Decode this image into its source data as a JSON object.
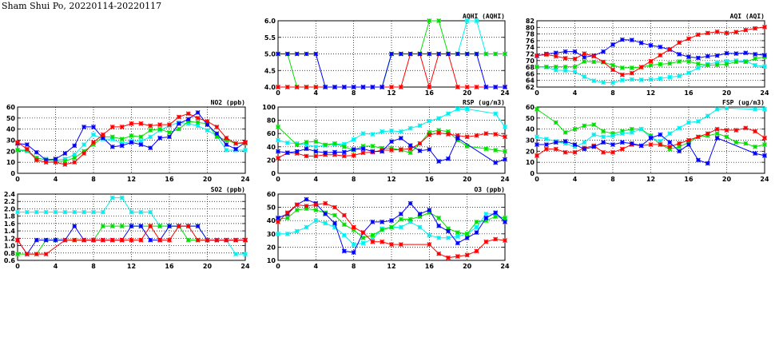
{
  "title": "Sham Shui Po, 20220114-20220117",
  "colors": {
    "blue": "#0000ff",
    "red": "#ff0000",
    "green": "#00e000",
    "cyan": "#00f0f0"
  },
  "chart_data": [
    {
      "id": "aqhi",
      "type": "line",
      "title": "AQHI (AQHI)",
      "xlim": [
        0,
        24
      ],
      "xticks": [
        0,
        4,
        8,
        12,
        16,
        20,
        24
      ],
      "ylim": [
        4,
        6
      ],
      "yticks": [
        "4.0",
        "4.5",
        "5.0",
        "5.5",
        "6.0"
      ],
      "grid": true,
      "x": [
        0,
        1,
        2,
        3,
        4,
        5,
        6,
        7,
        8,
        9,
        10,
        11,
        12,
        13,
        14,
        15,
        16,
        17,
        18,
        19,
        20,
        21,
        22,
        23,
        24
      ],
      "series": [
        {
          "name": "cyan",
          "values": [
            4,
            4,
            4,
            4,
            4,
            4,
            4,
            4,
            4,
            4,
            4,
            4,
            5,
            5,
            5,
            5,
            5,
            5,
            5,
            5,
            6,
            6,
            5,
            5,
            5
          ]
        },
        {
          "name": "green",
          "values": [
            5,
            5,
            4,
            4,
            4,
            4,
            4,
            4,
            4,
            4,
            4,
            4,
            5,
            5,
            5,
            5,
            6,
            6,
            5,
            5,
            5,
            5,
            5,
            5,
            5
          ]
        },
        {
          "name": "red",
          "values": [
            4,
            4,
            4,
            4,
            4,
            4,
            4,
            4,
            4,
            4,
            4,
            4,
            4,
            4,
            5,
            5,
            4,
            5,
            5,
            4,
            4,
            4,
            4,
            4,
            4
          ]
        },
        {
          "name": "blue",
          "values": [
            5,
            5,
            5,
            5,
            5,
            4,
            4,
            4,
            4,
            4,
            4,
            4,
            5,
            5,
            5,
            5,
            5,
            5,
            5,
            5,
            5,
            5,
            4,
            4,
            4
          ]
        }
      ]
    },
    {
      "id": "aqi",
      "type": "line",
      "title": "AQI (AQI)",
      "xlim": [
        0,
        24
      ],
      "xticks": [
        0,
        4,
        8,
        12,
        16,
        20,
        24
      ],
      "ylim": [
        62,
        82
      ],
      "yticks": [
        "62",
        "64",
        "66",
        "68",
        "70",
        "72",
        "74",
        "76",
        "78",
        "80",
        "82"
      ],
      "grid": true,
      "x": [
        0,
        1,
        2,
        3,
        4,
        5,
        6,
        7,
        8,
        9,
        10,
        11,
        12,
        13,
        14,
        15,
        16,
        17,
        18,
        19,
        20,
        21,
        22,
        23,
        24
      ],
      "series": [
        {
          "name": "cyan",
          "values": [
            68.1,
            68,
            67.1,
            67,
            66.6,
            65.1,
            63.9,
            63.4,
            63.3,
            64.1,
            64.3,
            64.2,
            64.3,
            64.6,
            65,
            65.3,
            66.3,
            67.8,
            68.9,
            69.4,
            69.8,
            70,
            69.8,
            68.6,
            68.2
          ]
        },
        {
          "name": "green",
          "values": [
            68.1,
            68.1,
            68.1,
            68.1,
            68.1,
            69.7,
            69.6,
            69.5,
            68.6,
            67.8,
            67.8,
            68,
            68.6,
            68.9,
            69.1,
            69.7,
            69.7,
            69,
            68.6,
            68.7,
            68.9,
            69.6,
            69.6,
            70.6,
            71.1
          ]
        },
        {
          "name": "blue",
          "values": [
            71.4,
            72,
            72.3,
            72.7,
            72.7,
            71,
            71.5,
            72.7,
            74.8,
            76.3,
            76.2,
            75.3,
            74.6,
            74.1,
            73.3,
            71.9,
            71.1,
            70.8,
            71.3,
            71.5,
            72.2,
            72.1,
            72.3,
            71.9,
            71.6
          ]
        },
        {
          "name": "red",
          "values": [
            71.5,
            71.8,
            71.3,
            70.7,
            70.5,
            72.1,
            71.3,
            69.6,
            67.2,
            65.7,
            66.2,
            68,
            69.8,
            71.6,
            73.4,
            75.4,
            76.6,
            77.8,
            78.3,
            78.7,
            78.3,
            78.6,
            79.2,
            79.7,
            80.1
          ]
        }
      ]
    },
    {
      "id": "no2",
      "type": "line",
      "title": "NO2 (ppb)",
      "xlim": [
        0,
        24
      ],
      "xticks": [
        0,
        4,
        8,
        12,
        16,
        20,
        24
      ],
      "ylim": [
        0,
        60
      ],
      "yticks": [
        "0",
        "10",
        "20",
        "30",
        "40",
        "50",
        "60"
      ],
      "grid": true,
      "x": [
        0,
        1,
        2,
        3,
        4,
        5,
        6,
        7,
        8,
        9,
        10,
        11,
        12,
        13,
        14,
        15,
        16,
        17,
        18,
        19,
        20,
        21,
        22,
        23,
        24
      ],
      "series": [
        {
          "name": "cyan",
          "values": [
            21,
            20,
            13,
            13,
            12,
            13,
            17,
            26,
            35,
            31,
            31,
            27,
            29,
            29,
            33,
            39,
            43,
            46,
            45,
            43,
            39,
            34,
            21,
            21,
            21
          ]
        },
        {
          "name": "green",
          "values": [
            21,
            21,
            14,
            12,
            11,
            11,
            14,
            20,
            26,
            33,
            33,
            31,
            34,
            33,
            39,
            40,
            37,
            40,
            47,
            46,
            45,
            33,
            30,
            27,
            27
          ]
        },
        {
          "name": "blue",
          "values": [
            27,
            26,
            19,
            12,
            13,
            18,
            25,
            42,
            42,
            32,
            24,
            25,
            28,
            26,
            23,
            32,
            33,
            45,
            49,
            55,
            44,
            36,
            26,
            22,
            28
          ]
        },
        {
          "name": "red",
          "values": [
            28,
            22,
            12,
            10,
            10,
            8,
            10,
            18,
            28,
            35,
            42,
            42,
            45,
            45,
            43,
            44,
            44,
            51,
            54,
            50,
            47,
            42,
            32,
            27,
            28
          ]
        }
      ]
    },
    {
      "id": "rsp",
      "type": "line",
      "title": "RSP (ug/m3)",
      "xlim": [
        0,
        24
      ],
      "xticks": [
        0,
        4,
        8,
        12,
        16,
        20,
        24
      ],
      "ylim": [
        0,
        100
      ],
      "yticks": [
        "0",
        "20",
        "40",
        "60",
        "80",
        "100"
      ],
      "grid": true,
      "x": [
        0,
        1,
        2,
        3,
        4,
        5,
        6,
        7,
        8,
        9,
        10,
        11,
        12,
        13,
        14,
        15,
        16,
        17,
        18,
        19,
        20,
        21,
        22,
        23,
        24
      ],
      "series": [
        {
          "name": "cyan",
          "values": [
            50,
            46,
            45,
            43,
            40,
            42,
            44,
            44,
            51,
            60,
            59,
            63,
            64,
            63,
            68,
            72,
            79,
            83,
            90,
            97,
            97,
            null,
            null,
            90,
            70
          ]
        },
        {
          "name": "green",
          "values": [
            70,
            null,
            43,
            47,
            48,
            43,
            45,
            40,
            35,
            41,
            41,
            38,
            38,
            35,
            31,
            45,
            62,
            65,
            63,
            50,
            41,
            null,
            37,
            35,
            33
          ]
        },
        {
          "name": "red",
          "values": [
            23,
            31,
            30,
            26,
            26,
            28,
            28,
            26,
            27,
            31,
            32,
            35,
            35,
            36,
            37,
            45,
            58,
            61,
            59,
            57,
            55,
            57,
            60,
            59,
            55
          ]
        },
        {
          "name": "blue",
          "values": [
            33,
            31,
            33,
            37,
            33,
            31,
            32,
            32,
            36,
            37,
            33,
            33,
            48,
            53,
            42,
            34,
            36,
            18,
            22,
            53,
            null,
            null,
            null,
            16,
            21
          ]
        }
      ]
    },
    {
      "id": "fsp",
      "type": "line",
      "title": "FSP (ug/m3)",
      "xlim": [
        0,
        24
      ],
      "xticks": [
        0,
        4,
        8,
        12,
        16,
        20,
        24
      ],
      "ylim": [
        0,
        60
      ],
      "yticks": [
        "0",
        "10",
        "20",
        "30",
        "40",
        "50",
        "60"
      ],
      "grid": true,
      "x": [
        0,
        1,
        2,
        3,
        4,
        5,
        6,
        7,
        8,
        9,
        10,
        11,
        12,
        13,
        14,
        15,
        16,
        17,
        18,
        19,
        20,
        21,
        22,
        23,
        24
      ],
      "series": [
        {
          "name": "green",
          "values": [
            58,
            null,
            46,
            37,
            40,
            43,
            44,
            38,
            36,
            38,
            40,
            40,
            34,
            26,
            22,
            24,
            28,
            33,
            34,
            36,
            33,
            28,
            27,
            24,
            26
          ]
        },
        {
          "name": "cyan",
          "values": [
            33,
            31,
            29,
            27,
            24,
            28,
            35,
            33,
            34,
            36,
            37,
            40,
            32,
            29,
            36,
            41,
            46,
            47,
            52,
            58,
            59,
            null,
            null,
            58,
            58
          ]
        },
        {
          "name": "red",
          "values": [
            16,
            22,
            22,
            19,
            19,
            23,
            25,
            19,
            19,
            22,
            26,
            25,
            26,
            26,
            24,
            27,
            30,
            33,
            36,
            40,
            39,
            39,
            41,
            38,
            32
          ]
        },
        {
          "name": "blue",
          "values": [
            26,
            26,
            28,
            29,
            26,
            22,
            24,
            28,
            26,
            28,
            27,
            25,
            32,
            35,
            28,
            20,
            26,
            12,
            9,
            32,
            null,
            null,
            null,
            18,
            16
          ]
        }
      ]
    },
    {
      "id": "so2",
      "type": "line",
      "title": "SO2 (ppb)",
      "xlim": [
        0,
        24
      ],
      "xticks": [
        0,
        4,
        8,
        12,
        16,
        20,
        24
      ],
      "ylim": [
        0.6,
        2.4
      ],
      "yticks": [
        "0.6",
        "0.8",
        "1.0",
        "1.2",
        "1.4",
        "1.6",
        "1.8",
        "2.0",
        "2.2",
        "2.4"
      ],
      "grid": true,
      "x": [
        0,
        1,
        2,
        3,
        4,
        5,
        6,
        7,
        8,
        9,
        10,
        11,
        12,
        13,
        14,
        15,
        16,
        17,
        18,
        19,
        20,
        21,
        22,
        23,
        24
      ],
      "series": [
        {
          "name": "cyan",
          "values": [
            1.91,
            1.91,
            1.91,
            1.91,
            1.91,
            1.91,
            1.91,
            1.91,
            1.91,
            1.91,
            2.3,
            2.3,
            1.91,
            1.91,
            1.91,
            1.53,
            1.53,
            1.53,
            1.53,
            1.53,
            1.15,
            1.15,
            1.15,
            0.77,
            0.77
          ]
        },
        {
          "name": "green",
          "values": [
            0.77,
            0.77,
            0.77,
            1.15,
            1.15,
            1.15,
            1.15,
            1.15,
            1.15,
            1.53,
            1.53,
            1.53,
            1.53,
            1.53,
            1.53,
            1.53,
            1.53,
            1.53,
            1.15,
            1.15,
            1.15,
            1.15,
            1.15,
            1.15,
            1.15
          ]
        },
        {
          "name": "blue",
          "values": [
            1.15,
            0.77,
            1.15,
            1.15,
            1.15,
            1.15,
            1.53,
            1.15,
            1.15,
            1.15,
            1.15,
            1.15,
            1.53,
            1.53,
            1.15,
            1.15,
            1.53,
            1.53,
            1.53,
            1.53,
            1.15,
            1.15,
            1.15,
            1.15,
            1.15
          ]
        },
        {
          "name": "red",
          "values": [
            1.15,
            0.77,
            0.77,
            0.77,
            null,
            1.15,
            1.15,
            1.15,
            1.15,
            1.15,
            1.15,
            1.15,
            1.15,
            1.15,
            1.53,
            1.15,
            1.15,
            1.53,
            1.53,
            1.15,
            1.15,
            1.15,
            1.15,
            1.15,
            1.15
          ]
        }
      ]
    },
    {
      "id": "o3",
      "type": "line",
      "title": "O3 (ppb)",
      "xlim": [
        0,
        24
      ],
      "xticks": [
        0,
        4,
        8,
        12,
        16,
        20,
        24
      ],
      "ylim": [
        10,
        60
      ],
      "yticks": [
        "10",
        "20",
        "30",
        "40",
        "50",
        "60"
      ],
      "grid": true,
      "x": [
        0,
        1,
        2,
        3,
        4,
        5,
        6,
        7,
        8,
        9,
        10,
        11,
        12,
        13,
        14,
        15,
        16,
        17,
        18,
        19,
        20,
        21,
        22,
        23,
        24
      ],
      "series": [
        {
          "name": "cyan",
          "values": [
            30,
            30,
            32,
            35,
            40,
            38,
            35,
            29,
            22,
            23,
            26,
            34,
            35,
            35,
            39,
            35,
            29,
            27,
            27,
            28,
            30,
            35,
            45,
            45,
            41
          ]
        },
        {
          "name": "green",
          "values": [
            41,
            42,
            48,
            49,
            48,
            46,
            44,
            37,
            33,
            27,
            29,
            33,
            35,
            41,
            41,
            43,
            46,
            42,
            34,
            31,
            30,
            39,
            40,
            43,
            42
          ]
        },
        {
          "name": "blue",
          "values": [
            42,
            45,
            52,
            56,
            53,
            45,
            38,
            17,
            16,
            31,
            39,
            39,
            40,
            45,
            53,
            45,
            48,
            36,
            32,
            23,
            27,
            31,
            42,
            46,
            39
          ]
        },
        {
          "name": "red",
          "values": [
            39,
            46,
            52,
            51,
            52,
            53,
            50,
            44,
            35,
            31,
            24,
            24,
            22,
            22,
            null,
            null,
            22,
            15,
            12,
            13,
            14,
            17,
            24,
            26,
            25
          ]
        }
      ]
    }
  ]
}
